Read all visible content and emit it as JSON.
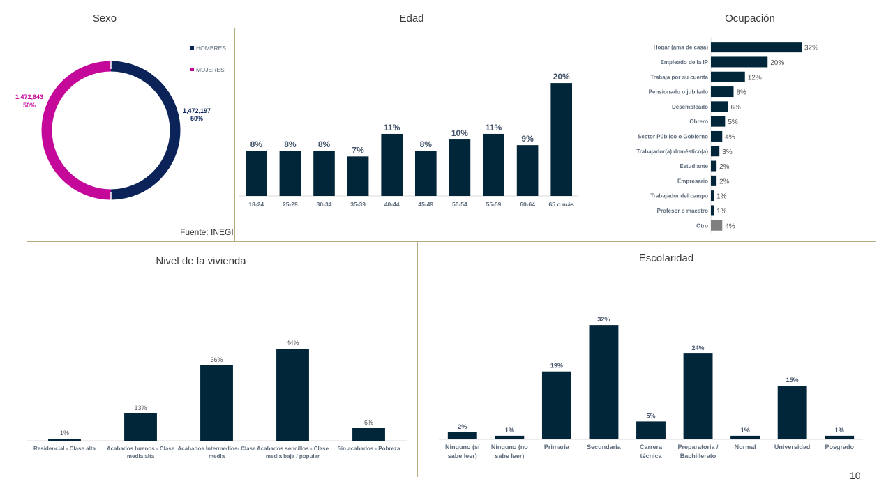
{
  "page_number": "10",
  "source": "Fuente: INEGI",
  "colors": {
    "navy": "#022639",
    "magenta": "#c4089a",
    "donut_navy": "#0b2358",
    "gray": "#7f7f7f",
    "divider": "#b5ad80",
    "label": "#5c6a7a"
  },
  "chart_data": [
    {
      "id": "sexo",
      "type": "pie",
      "title": "Sexo",
      "categories": [
        "HOMBRES",
        "MUJERES"
      ],
      "values": [
        1472197,
        1472643
      ],
      "value_labels": [
        "1,472,197",
        "1,472,643"
      ],
      "percent_labels": [
        "50%",
        "50%"
      ],
      "legend": [
        "HOMBRES",
        "MUJERES"
      ],
      "legend_position": "top-right"
    },
    {
      "id": "edad",
      "type": "bar",
      "title": "Edad",
      "categories": [
        "18-24",
        "25-29",
        "30-34",
        "35-39",
        "40-44",
        "45-49",
        "50-54",
        "55-59",
        "60-64",
        "65 o más"
      ],
      "values": [
        8,
        8,
        8,
        7,
        11,
        8,
        10,
        11,
        9,
        20
      ],
      "labels": [
        "8%",
        "8%",
        "8%",
        "7%",
        "11%",
        "8%",
        "10%",
        "11%",
        "9%",
        "20%"
      ],
      "ylim": [
        0,
        21
      ]
    },
    {
      "id": "ocupacion",
      "type": "bar",
      "orientation": "horizontal",
      "title": "Ocupación",
      "categories": [
        "Hogar (ama de casa)",
        "Empleado de la IP",
        "Trabaja por su cuenta",
        "Pensionado o jubilado",
        "Desempleado",
        "Obrero",
        "Sector Público o Gobierno",
        "Trabajador(a) doméstico(a)",
        "Estudiante",
        "Empresario",
        "Trabajador del campo",
        "Profesor o maestro",
        "Otro"
      ],
      "values": [
        32,
        20,
        12,
        8,
        6,
        5,
        4,
        3,
        2,
        2,
        1,
        1,
        4
      ],
      "labels": [
        "32%",
        "20%",
        "12%",
        "8%",
        "6%",
        "5%",
        "4%",
        "3%",
        "2%",
        "2%",
        "1%",
        "1%",
        "4%"
      ],
      "xlim": [
        0,
        40
      ]
    },
    {
      "id": "vivienda",
      "type": "bar",
      "title": "Nivel de la vivienda",
      "categories": [
        [
          "Residencial - Clase alta"
        ],
        [
          "Acabados buenos - Clase",
          "media alta"
        ],
        [
          "Acabados Intermedios- Clase",
          "media"
        ],
        [
          "Acabados sencillos - Clase",
          "media baja / popular"
        ],
        [
          "Sin acabados - Pobreza"
        ]
      ],
      "values": [
        1,
        13,
        36,
        44,
        6
      ],
      "labels": [
        "1%",
        "13%",
        "36%",
        "44%",
        "6%"
      ],
      "ylim": [
        0,
        46
      ]
    },
    {
      "id": "escolaridad",
      "type": "bar",
      "title": "Escolaridad",
      "categories": [
        [
          "Ninguno (sí",
          "sabe leer)"
        ],
        [
          "Ninguno (no",
          "sabe leer)"
        ],
        [
          "Primaria"
        ],
        [
          "Secundaria"
        ],
        [
          "Carrera",
          "técnica"
        ],
        [
          "Preparatoria /",
          "Bachillerato"
        ],
        [
          "Normal"
        ],
        [
          "Universidad"
        ],
        [
          "Posgrado"
        ]
      ],
      "values": [
        2,
        1,
        19,
        32,
        5,
        24,
        1,
        15,
        1
      ],
      "labels": [
        "2%",
        "1%",
        "19%",
        "32%",
        "5%",
        "24%",
        "1%",
        "15%",
        "1%"
      ],
      "ylim": [
        0,
        33
      ]
    }
  ]
}
